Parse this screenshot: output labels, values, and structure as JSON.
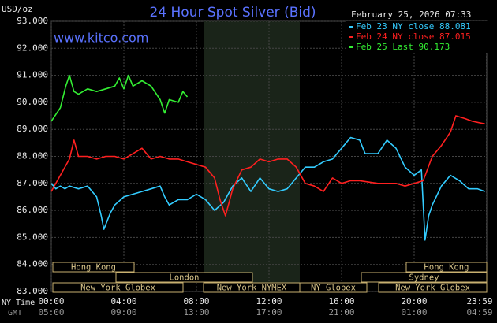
{
  "chart_data": {
    "type": "line",
    "title": "24 Hour Spot Silver (Bid)",
    "y_label": "USD/oz",
    "timestamp": "February 25, 2026 07:33",
    "site": "www.kitco.com",
    "x_row_label": "NY Time",
    "x2_row_label": "GMT",
    "xlim": [
      0,
      24
    ],
    "xticks": [
      {
        "value": 0,
        "label": "00:00"
      },
      {
        "value": 4,
        "label": "04:00"
      },
      {
        "value": 8,
        "label": "08:00"
      },
      {
        "value": 12,
        "label": "12:00"
      },
      {
        "value": 16,
        "label": "16:00"
      },
      {
        "value": 20,
        "label": "20:00"
      },
      {
        "value": 23.983,
        "label": "23:59"
      }
    ],
    "x2tick_labels": [
      "05:00",
      "09:00",
      "13:00",
      "17:00",
      "21:00",
      "01:00",
      "04:59"
    ],
    "ylim": [
      83,
      93
    ],
    "yticks": [
      {
        "value": 83,
        "label": "83.000"
      },
      {
        "value": 84,
        "label": "84.000"
      },
      {
        "value": 85,
        "label": "85.000"
      },
      {
        "value": 86,
        "label": "86.000"
      },
      {
        "value": 87,
        "label": "87.000"
      },
      {
        "value": 88,
        "label": "88.000"
      },
      {
        "value": 89,
        "label": "89.000"
      },
      {
        "value": 90,
        "label": "90.000"
      },
      {
        "value": 91,
        "label": "91.000"
      },
      {
        "value": 92,
        "label": "92.000"
      },
      {
        "value": 93,
        "label": "93.000"
      }
    ],
    "grid": true,
    "sessions": [
      "Hong Kong",
      "Hong Kong",
      "London",
      "Sydney",
      "New York Globex",
      "New York NYMEX",
      "NY Globex",
      "New York Globex"
    ],
    "series": [
      {
        "name": "Feb 23 NY close 88.081",
        "color": "#33ccff",
        "x": [
          0,
          0.25,
          0.5,
          0.75,
          1,
          1.5,
          2,
          2.5,
          2.75,
          2.9,
          3.25,
          3.5,
          4,
          4.5,
          5,
          5.5,
          6,
          6.25,
          6.5,
          7,
          7.5,
          8,
          8.5,
          9,
          9.5,
          10,
          10.5,
          11,
          11.5,
          12,
          12.5,
          13,
          13.5,
          14,
          14.5,
          15,
          15.5,
          16,
          16.5,
          17,
          17.3,
          18,
          18.5,
          19,
          19.5,
          20,
          20.4,
          20.6,
          20.8,
          21,
          21.5,
          22,
          22.5,
          23,
          23.5,
          23.9
        ],
        "values": [
          87.0,
          86.8,
          86.9,
          86.8,
          86.9,
          86.8,
          86.9,
          86.5,
          85.8,
          85.3,
          85.9,
          86.2,
          86.5,
          86.6,
          86.7,
          86.8,
          86.9,
          86.5,
          86.2,
          86.4,
          86.4,
          86.6,
          86.4,
          86.0,
          86.3,
          86.9,
          87.2,
          86.7,
          87.2,
          86.8,
          86.7,
          86.8,
          87.2,
          87.6,
          87.6,
          87.8,
          87.9,
          88.3,
          88.7,
          88.6,
          88.1,
          88.1,
          88.6,
          88.3,
          87.6,
          87.3,
          87.5,
          84.9,
          85.8,
          86.2,
          86.9,
          87.3,
          87.1,
          86.8,
          86.8,
          86.7
        ]
      },
      {
        "name": "Feb 24 NY close 87.015",
        "color": "#ff2020",
        "x": [
          0,
          0.5,
          1,
          1.25,
          1.5,
          2,
          2.5,
          3,
          3.5,
          4,
          4.5,
          5,
          5.5,
          6,
          6.5,
          7,
          7.5,
          8,
          8.5,
          9,
          9.3,
          9.6,
          10,
          10.5,
          11,
          11.5,
          12,
          12.5,
          13,
          13.5,
          14,
          14.5,
          15,
          15.5,
          16,
          16.5,
          17,
          18,
          19,
          19.5,
          20,
          20.5,
          21,
          21.5,
          22,
          22.3,
          22.8,
          23.2,
          23.9
        ],
        "values": [
          86.7,
          87.3,
          87.9,
          88.6,
          88.0,
          88.0,
          87.9,
          88.0,
          88.0,
          87.9,
          88.1,
          88.3,
          87.9,
          88.0,
          87.9,
          87.9,
          87.8,
          87.7,
          87.6,
          87.2,
          86.4,
          85.8,
          86.8,
          87.5,
          87.6,
          87.9,
          87.8,
          87.9,
          87.9,
          87.6,
          87.0,
          86.9,
          86.7,
          87.2,
          87.0,
          87.1,
          87.1,
          87.0,
          87.0,
          86.9,
          87.0,
          87.1,
          88.0,
          88.4,
          88.9,
          89.5,
          89.4,
          89.3,
          89.2
        ]
      },
      {
        "name": "Feb 25 Last 90.173",
        "color": "#33ee33",
        "x": [
          0,
          0.5,
          0.8,
          1,
          1.25,
          1.5,
          2,
          2.5,
          3,
          3.5,
          3.75,
          4,
          4.25,
          4.5,
          5,
          5.5,
          6,
          6.25,
          6.5,
          7,
          7.25,
          7.5
        ],
        "values": [
          89.3,
          89.8,
          90.6,
          91.0,
          90.4,
          90.3,
          90.5,
          90.4,
          90.5,
          90.6,
          90.9,
          90.5,
          91.0,
          90.6,
          90.8,
          90.6,
          90.1,
          89.6,
          90.1,
          90.0,
          90.4,
          90.2
        ]
      }
    ]
  }
}
